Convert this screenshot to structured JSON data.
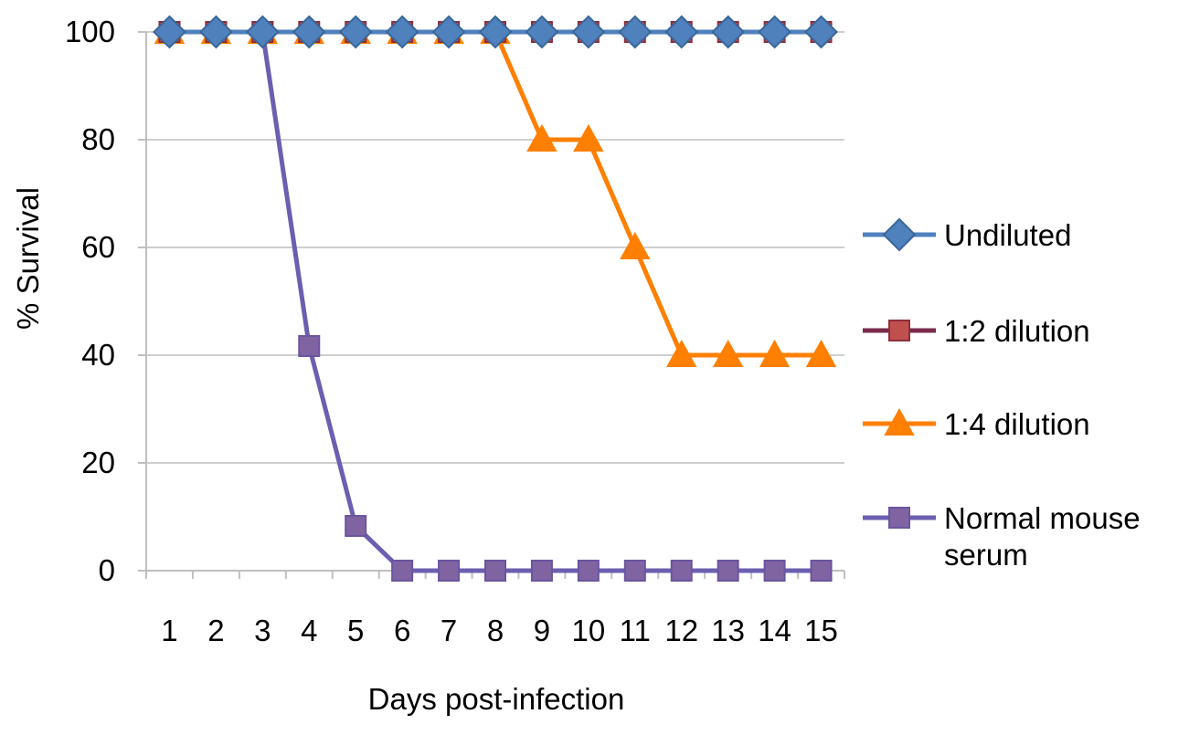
{
  "chart_data": {
    "type": "line",
    "title": "",
    "xlabel": "Days post-infection",
    "ylabel": "% Survival",
    "ylim": [
      0,
      100
    ],
    "yticks": [
      0,
      20,
      40,
      60,
      80,
      100
    ],
    "categories": [
      "1",
      "2",
      "3",
      "4",
      "5",
      "6",
      "7",
      "8",
      "9",
      "10",
      "11",
      "12",
      "13",
      "14",
      "15"
    ],
    "grid": "horizontal",
    "legend_position": "right",
    "series": [
      {
        "name": "Undiluted",
        "marker": "diamond",
        "color": "#4F81BD",
        "edge": "#3A6699",
        "values": [
          100,
          100,
          100,
          100,
          100,
          100,
          100,
          100,
          100,
          100,
          100,
          100,
          100,
          100,
          100
        ]
      },
      {
        "name": "1:2 dilution",
        "marker": "square",
        "color": "#C0504D",
        "edge": "#8E2E3C",
        "line": "#7A2A4A",
        "values": [
          100,
          100,
          100,
          100,
          100,
          100,
          100,
          100,
          100,
          100,
          100,
          100,
          100,
          100,
          100
        ]
      },
      {
        "name": "1:4 dilution",
        "marker": "triangle",
        "color": "#FF7F00",
        "edge": "#FF7F00",
        "values": [
          100,
          100,
          100,
          100,
          100,
          100,
          100,
          100,
          80,
          80,
          60,
          40,
          40,
          40,
          40
        ]
      },
      {
        "name": "Normal mouse serum",
        "legend_lines": [
          "Normal mouse",
          "serum"
        ],
        "marker": "square",
        "color": "#8064A2",
        "edge": "#6A55A0",
        "line": "#6B5FB0",
        "values": [
          100,
          100,
          100,
          41.7,
          8.3,
          0,
          0,
          0,
          0,
          0,
          0,
          0,
          0,
          0,
          0
        ]
      }
    ]
  }
}
